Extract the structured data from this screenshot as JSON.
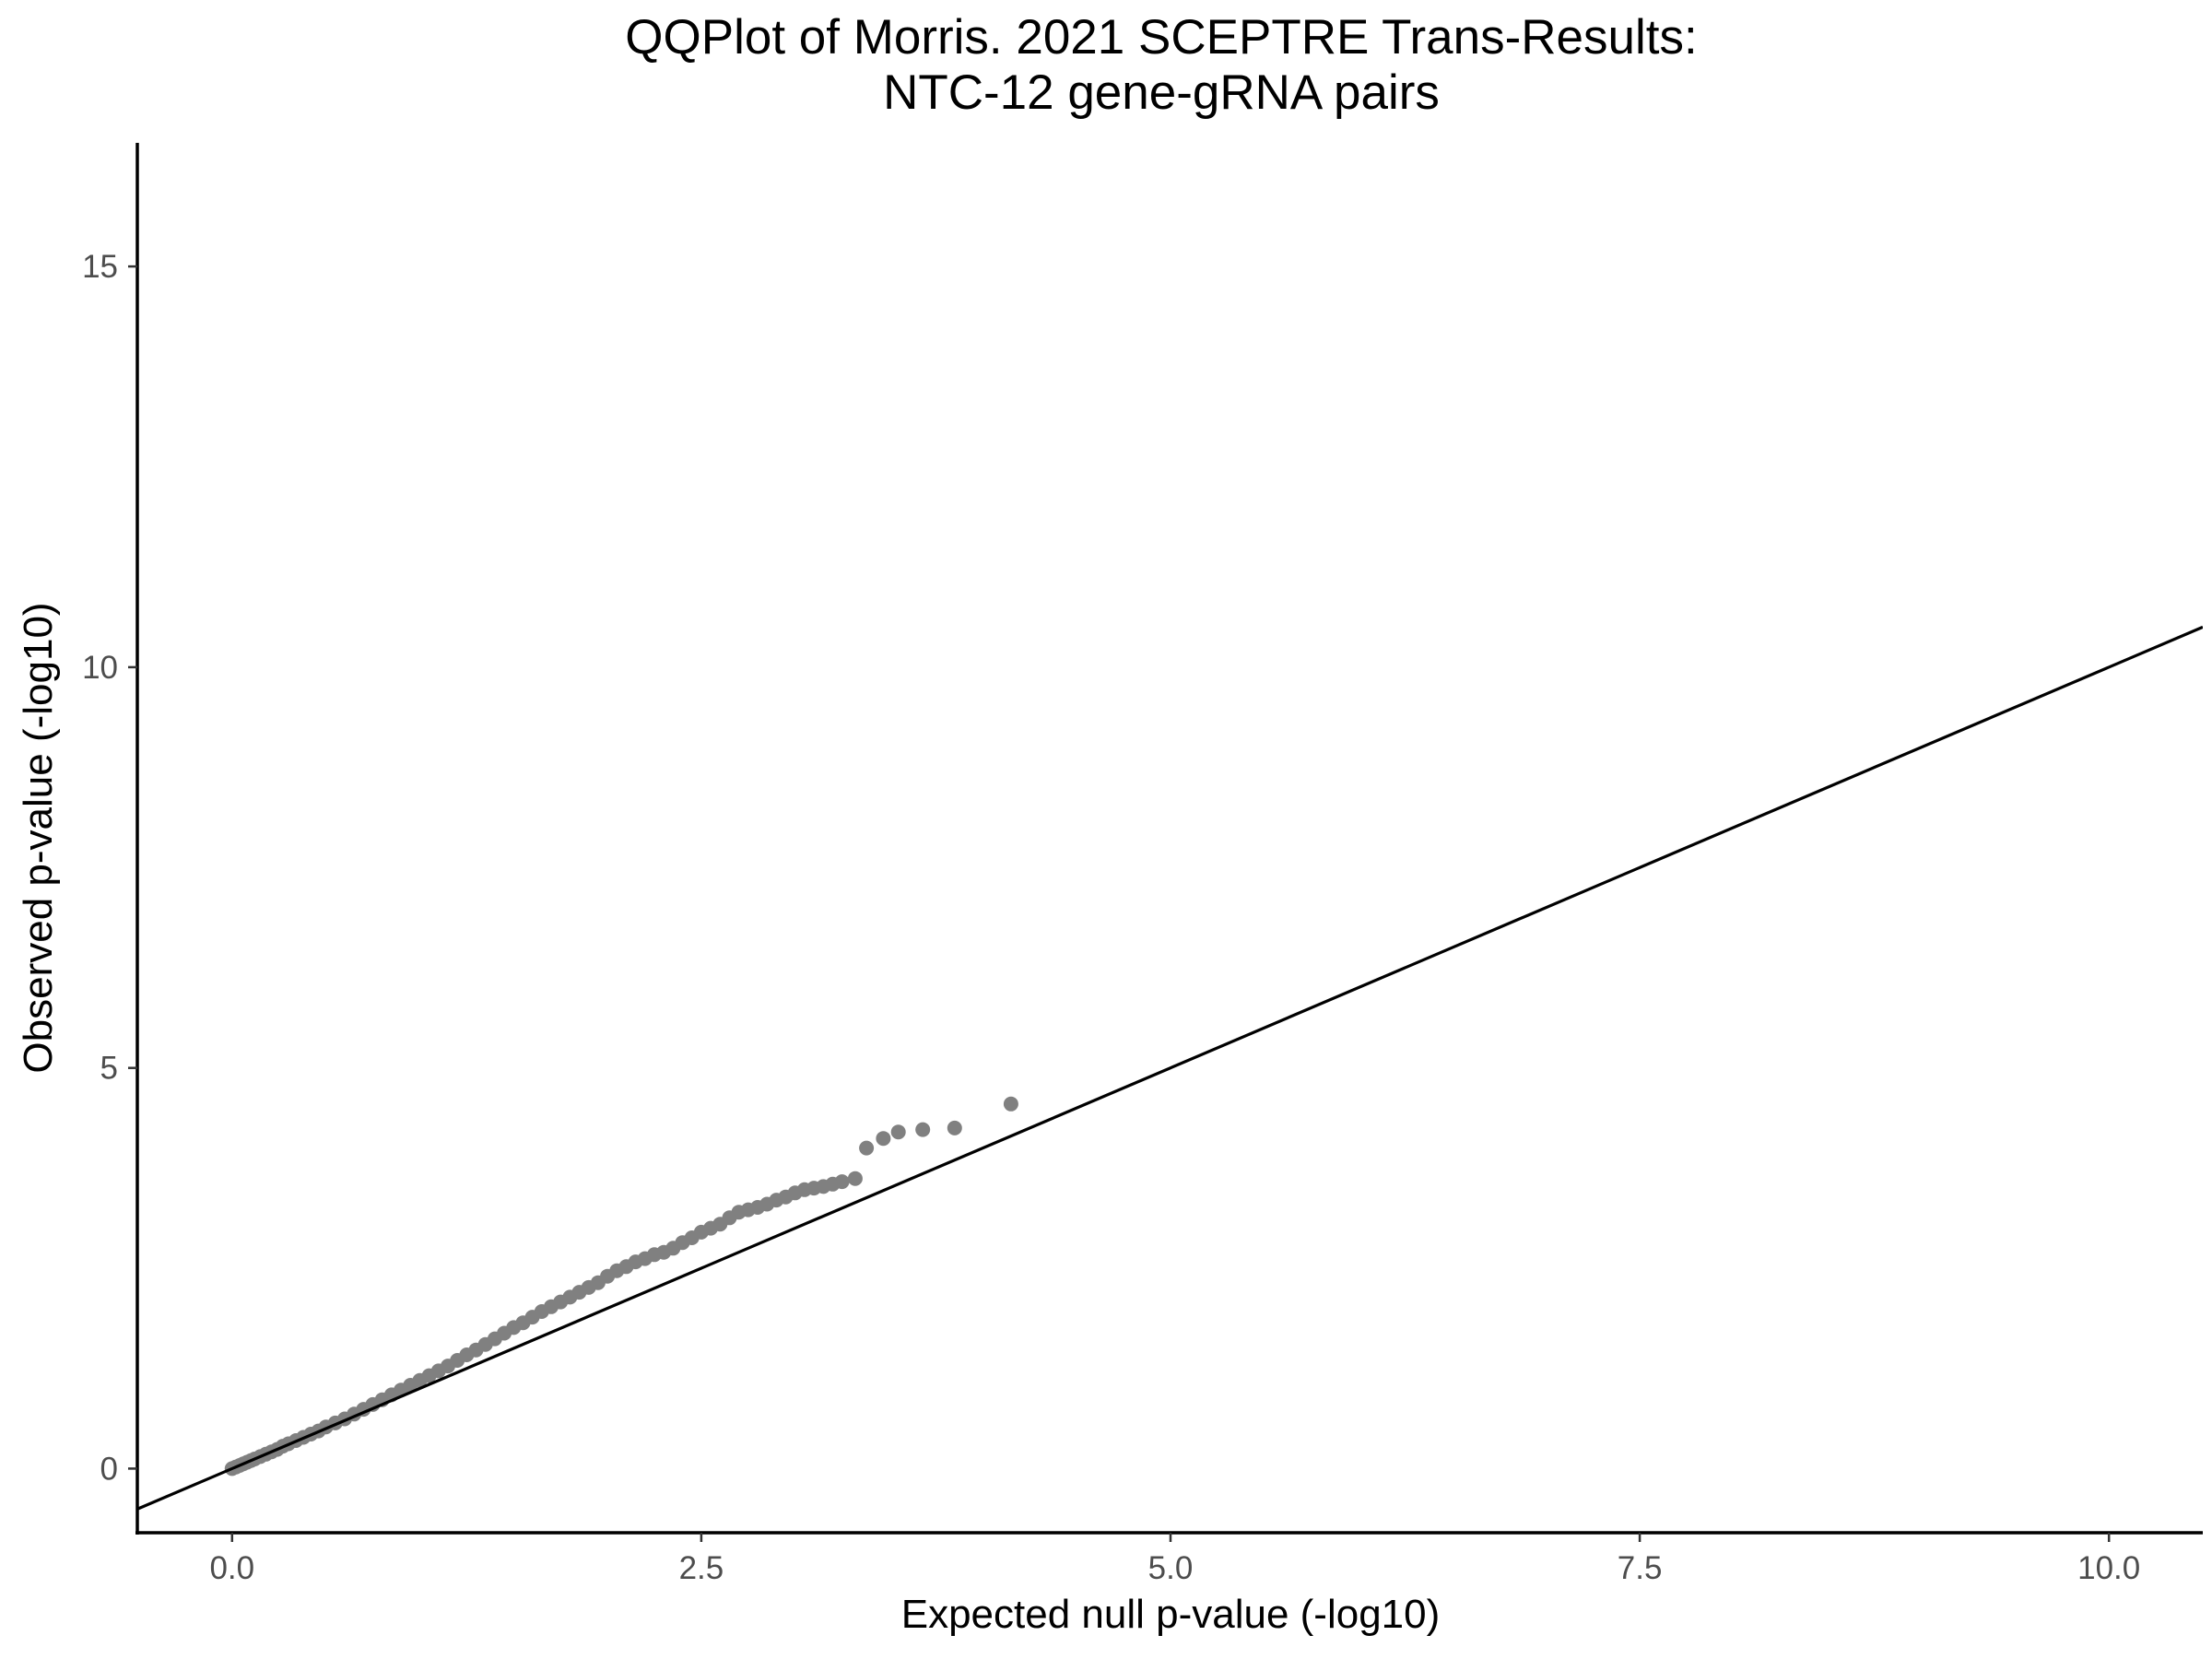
{
  "chart_data": {
    "type": "scatter",
    "title_lines": [
      "QQPlot of Morris. 2021 SCEPTRE Trans-Results:",
      "NTC-12 gene-gRNA pairs"
    ],
    "xlabel": "Expected null p-value (-log10)",
    "ylabel": "Observed p-value (-log10)",
    "xlim": [
      -0.5,
      10.5
    ],
    "ylim": [
      -0.8,
      16.6
    ],
    "x_ticks": [
      0.0,
      2.5,
      5.0,
      7.5,
      10.0
    ],
    "x_tick_labels": [
      "0.0",
      "2.5",
      "5.0",
      "7.5",
      "10.0"
    ],
    "y_ticks": [
      0,
      5,
      10,
      15
    ],
    "y_tick_labels": [
      "0",
      "5",
      "10",
      "15"
    ],
    "grid": false,
    "reference_line": {
      "intercept": 0,
      "slope": 1,
      "color": "#000000"
    },
    "point_color": "#808080",
    "series": [
      {
        "points": [
          [
            0.0,
            0.0
          ],
          [
            0.02,
            0.02
          ],
          [
            0.04,
            0.04
          ],
          [
            0.06,
            0.06
          ],
          [
            0.08,
            0.08
          ],
          [
            0.1,
            0.1
          ],
          [
            0.12,
            0.12
          ],
          [
            0.15,
            0.15
          ],
          [
            0.18,
            0.18
          ],
          [
            0.21,
            0.21
          ],
          [
            0.24,
            0.24
          ],
          [
            0.27,
            0.28
          ],
          [
            0.3,
            0.31
          ],
          [
            0.34,
            0.35
          ],
          [
            0.38,
            0.39
          ],
          [
            0.42,
            0.43
          ],
          [
            0.46,
            0.47
          ],
          [
            0.5,
            0.52
          ],
          [
            0.55,
            0.57
          ],
          [
            0.6,
            0.62
          ],
          [
            0.65,
            0.68
          ],
          [
            0.7,
            0.74
          ],
          [
            0.75,
            0.8
          ],
          [
            0.8,
            0.86
          ],
          [
            0.85,
            0.92
          ],
          [
            0.9,
            0.98
          ],
          [
            0.95,
            1.04
          ],
          [
            1.0,
            1.1
          ],
          [
            1.05,
            1.16
          ],
          [
            1.1,
            1.22
          ],
          [
            1.15,
            1.28
          ],
          [
            1.2,
            1.35
          ],
          [
            1.25,
            1.42
          ],
          [
            1.3,
            1.48
          ],
          [
            1.35,
            1.55
          ],
          [
            1.4,
            1.62
          ],
          [
            1.45,
            1.69
          ],
          [
            1.5,
            1.76
          ],
          [
            1.55,
            1.82
          ],
          [
            1.6,
            1.89
          ],
          [
            1.65,
            1.96
          ],
          [
            1.7,
            2.02
          ],
          [
            1.75,
            2.08
          ],
          [
            1.8,
            2.14
          ],
          [
            1.85,
            2.2
          ],
          [
            1.9,
            2.26
          ],
          [
            1.95,
            2.32
          ],
          [
            2.0,
            2.4
          ],
          [
            2.05,
            2.47
          ],
          [
            2.1,
            2.52
          ],
          [
            2.15,
            2.58
          ],
          [
            2.2,
            2.62
          ],
          [
            2.25,
            2.67
          ],
          [
            2.3,
            2.7
          ],
          [
            2.35,
            2.75
          ],
          [
            2.4,
            2.82
          ],
          [
            2.45,
            2.88
          ],
          [
            2.5,
            2.95
          ],
          [
            2.55,
            3.0
          ],
          [
            2.6,
            3.05
          ],
          [
            2.65,
            3.13
          ],
          [
            2.7,
            3.2
          ],
          [
            2.75,
            3.23
          ],
          [
            2.8,
            3.26
          ],
          [
            2.85,
            3.3
          ],
          [
            2.9,
            3.35
          ],
          [
            2.95,
            3.39
          ],
          [
            3.0,
            3.44
          ],
          [
            3.05,
            3.48
          ],
          [
            3.1,
            3.5
          ],
          [
            3.15,
            3.52
          ],
          [
            3.2,
            3.55
          ],
          [
            3.25,
            3.58
          ],
          [
            3.32,
            3.62
          ],
          [
            3.38,
            4.0
          ],
          [
            3.47,
            4.12
          ],
          [
            3.55,
            4.2
          ],
          [
            3.68,
            4.23
          ],
          [
            3.85,
            4.25
          ],
          [
            4.15,
            4.55
          ]
        ]
      }
    ]
  }
}
